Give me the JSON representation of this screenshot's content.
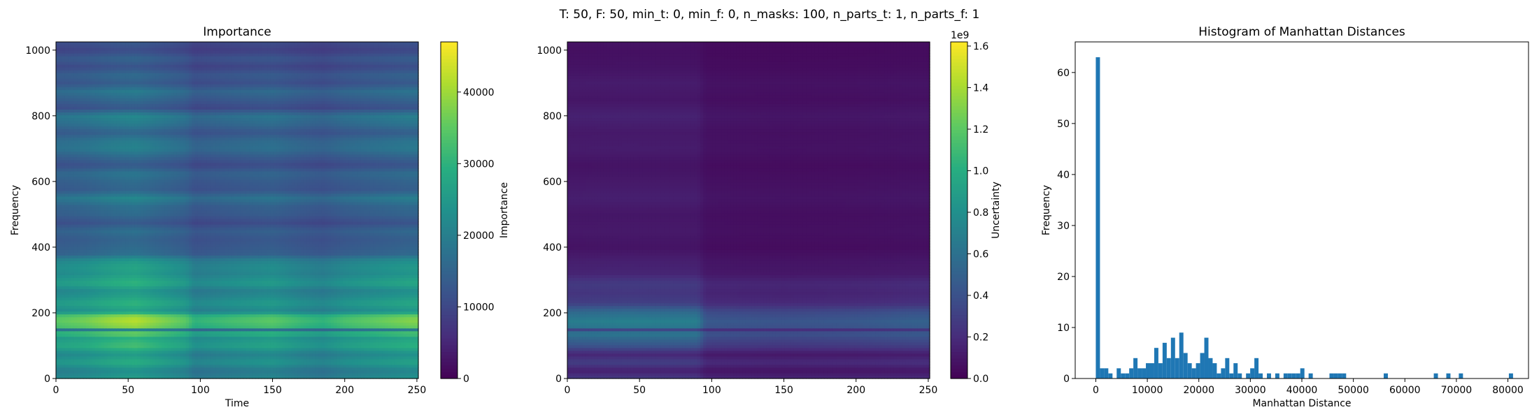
{
  "suptitle": "T: 50, F: 50, min_t: 0, min_f: 0, n_masks: 100, n_parts_t: 1, n_parts_f: 1",
  "colormap": [
    "#440154",
    "#472d7b",
    "#3b528b",
    "#2c728e",
    "#21918c",
    "#28ae80",
    "#5ec962",
    "#addc30",
    "#fde725"
  ],
  "chart_data": [
    {
      "type": "heatmap",
      "title": "Importance",
      "xlabel": "Time",
      "ylabel": "Frequency",
      "xlim": [
        0,
        251
      ],
      "ylim": [
        0,
        1025
      ],
      "xticks": [
        0,
        50,
        100,
        150,
        200,
        250
      ],
      "yticks": [
        0,
        200,
        400,
        600,
        800,
        1000
      ],
      "colorbar": {
        "label": "Importance",
        "range": [
          0,
          47000
        ],
        "ticks": [
          0,
          10000,
          20000,
          30000,
          40000
        ],
        "offset": ""
      },
      "time_profile": [
        [
          0,
          0.92
        ],
        [
          20,
          0.97
        ],
        [
          40,
          1.06
        ],
        [
          55,
          1.1
        ],
        [
          70,
          1.02
        ],
        [
          90,
          0.92
        ],
        [
          96,
          0.8
        ],
        [
          120,
          0.86
        ],
        [
          150,
          0.92
        ],
        [
          170,
          0.84
        ],
        [
          185,
          0.8
        ],
        [
          200,
          0.88
        ],
        [
          230,
          0.96
        ],
        [
          245,
          1.0
        ],
        [
          251,
          1.0
        ]
      ],
      "freq_profile": [
        [
          0,
          24000
        ],
        [
          25,
          21000
        ],
        [
          50,
          27000
        ],
        [
          75,
          23000
        ],
        [
          100,
          30000
        ],
        [
          125,
          27000
        ],
        [
          140,
          36000
        ],
        [
          147,
          8000
        ],
        [
          153,
          35000
        ],
        [
          175,
          38000
        ],
        [
          190,
          37000
        ],
        [
          205,
          24000
        ],
        [
          230,
          28000
        ],
        [
          255,
          24000
        ],
        [
          270,
          23000
        ],
        [
          290,
          28000
        ],
        [
          320,
          24000
        ],
        [
          340,
          25000
        ],
        [
          360,
          23000
        ],
        [
          380,
          16000
        ],
        [
          400,
          15000
        ],
        [
          425,
          14000
        ],
        [
          450,
          16000
        ],
        [
          475,
          12000
        ],
        [
          500,
          15000
        ],
        [
          525,
          16000
        ],
        [
          550,
          20000
        ],
        [
          575,
          14000
        ],
        [
          600,
          15000
        ],
        [
          625,
          17000
        ],
        [
          650,
          12000
        ],
        [
          675,
          15000
        ],
        [
          700,
          19000
        ],
        [
          725,
          18000
        ],
        [
          750,
          14000
        ],
        [
          775,
          18000
        ],
        [
          800,
          20000
        ],
        [
          825,
          12000
        ],
        [
          850,
          15000
        ],
        [
          875,
          18000
        ],
        [
          900,
          13000
        ],
        [
          925,
          15000
        ],
        [
          950,
          11000
        ],
        [
          975,
          14000
        ],
        [
          1000,
          10000
        ],
        [
          1025,
          12000
        ]
      ]
    },
    {
      "type": "heatmap",
      "title": "",
      "xlabel": "",
      "ylabel": "",
      "xlim": [
        0,
        251
      ],
      "ylim": [
        0,
        1025
      ],
      "xticks": [
        0,
        50,
        100,
        150,
        200,
        250
      ],
      "yticks": [
        0,
        200,
        400,
        600,
        800,
        1000
      ],
      "colorbar": {
        "label": "Uncertainty",
        "range": [
          0,
          1.62
        ],
        "ticks": [
          0.0,
          0.2,
          0.4,
          0.6,
          0.8,
          1.0,
          1.2,
          1.4,
          1.6
        ],
        "offset": "1e9"
      },
      "time_profile": [
        [
          0,
          1.35
        ],
        [
          40,
          1.4
        ],
        [
          90,
          1.38
        ],
        [
          96,
          0.9
        ],
        [
          150,
          0.85
        ],
        [
          200,
          0.9
        ],
        [
          240,
          1.0
        ],
        [
          251,
          1.0
        ]
      ],
      "freq_profile": [
        [
          0,
          0.2
        ],
        [
          25,
          0.1
        ],
        [
          50,
          0.22
        ],
        [
          75,
          0.12
        ],
        [
          100,
          0.3
        ],
        [
          125,
          0.4
        ],
        [
          140,
          0.48
        ],
        [
          147,
          0.1
        ],
        [
          153,
          0.45
        ],
        [
          175,
          0.5
        ],
        [
          205,
          0.4
        ],
        [
          230,
          0.22
        ],
        [
          260,
          0.18
        ],
        [
          290,
          0.2
        ],
        [
          320,
          0.12
        ],
        [
          360,
          0.1
        ],
        [
          400,
          0.06
        ],
        [
          450,
          0.08
        ],
        [
          500,
          0.07
        ],
        [
          550,
          0.1
        ],
        [
          600,
          0.08
        ],
        [
          650,
          0.06
        ],
        [
          700,
          0.09
        ],
        [
          750,
          0.08
        ],
        [
          800,
          0.11
        ],
        [
          850,
          0.07
        ],
        [
          900,
          0.09
        ],
        [
          950,
          0.06
        ],
        [
          1000,
          0.05
        ],
        [
          1025,
          0.06
        ]
      ]
    },
    {
      "type": "bar",
      "title": "Histogram of Manhattan Distances",
      "xlabel": "Manhattan Distance",
      "ylabel": "Frequency",
      "xlim": [
        -4000,
        84000
      ],
      "ylim": [
        0,
        66
      ],
      "xticks": [
        0,
        10000,
        20000,
        30000,
        40000,
        50000,
        60000,
        70000,
        80000
      ],
      "yticks": [
        0,
        10,
        20,
        30,
        40,
        50,
        60
      ],
      "bin_width": 810,
      "bins": [
        [
          0,
          63
        ],
        [
          810,
          2
        ],
        [
          1620,
          2
        ],
        [
          2430,
          1
        ],
        [
          4050,
          2
        ],
        [
          4860,
          1
        ],
        [
          5670,
          1
        ],
        [
          6480,
          2
        ],
        [
          7290,
          4
        ],
        [
          8100,
          2
        ],
        [
          8910,
          2
        ],
        [
          9720,
          3
        ],
        [
          10530,
          3
        ],
        [
          11340,
          6
        ],
        [
          12150,
          3
        ],
        [
          12960,
          7
        ],
        [
          13770,
          4
        ],
        [
          14580,
          8
        ],
        [
          15390,
          4
        ],
        [
          16200,
          9
        ],
        [
          17010,
          5
        ],
        [
          17820,
          3
        ],
        [
          18630,
          2
        ],
        [
          19440,
          3
        ],
        [
          20250,
          5
        ],
        [
          21060,
          8
        ],
        [
          21870,
          4
        ],
        [
          22680,
          3
        ],
        [
          23490,
          1
        ],
        [
          24300,
          2
        ],
        [
          25110,
          4
        ],
        [
          25920,
          1
        ],
        [
          26730,
          3
        ],
        [
          27540,
          1
        ],
        [
          29160,
          1
        ],
        [
          29970,
          2
        ],
        [
          30780,
          4
        ],
        [
          31590,
          1
        ],
        [
          33210,
          1
        ],
        [
          34830,
          1
        ],
        [
          36450,
          1
        ],
        [
          37260,
          1
        ],
        [
          38070,
          1
        ],
        [
          38880,
          1
        ],
        [
          39690,
          2
        ],
        [
          41310,
          1
        ],
        [
          45360,
          1
        ],
        [
          46170,
          1
        ],
        [
          46980,
          1
        ],
        [
          47790,
          1
        ],
        [
          55890,
          1
        ],
        [
          65610,
          1
        ],
        [
          68040,
          1
        ],
        [
          70470,
          1
        ],
        [
          80190,
          1
        ]
      ]
    }
  ]
}
